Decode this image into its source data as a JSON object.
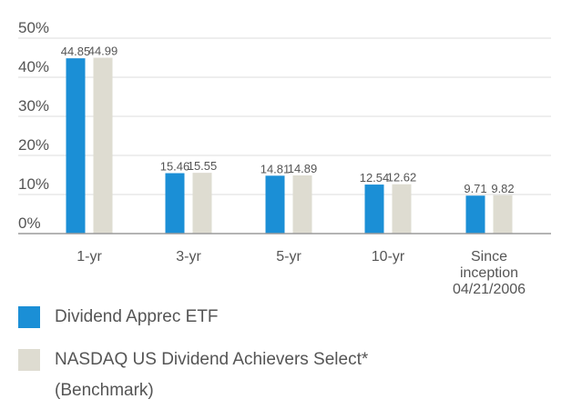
{
  "chart_data": {
    "type": "bar",
    "categories": [
      "1-yr",
      "3-yr",
      "5-yr",
      "10-yr",
      "Since inception 04/21/2006"
    ],
    "category_label_lines": [
      [
        "1-yr"
      ],
      [
        "3-yr"
      ],
      [
        "5-yr"
      ],
      [
        "10-yr"
      ],
      [
        "Since",
        "inception",
        "04/21/2006"
      ]
    ],
    "series": [
      {
        "name": "Dividend Apprec ETF",
        "values": [
          44.85,
          15.46,
          14.81,
          12.54,
          9.71
        ],
        "value_labels": [
          "44.85",
          "15.46",
          "14.81",
          "12.54",
          "9.71"
        ],
        "color": "#1b8fd6"
      },
      {
        "name": "NASDAQ US Dividend Achievers Select* (Benchmark)",
        "values": [
          44.99,
          15.55,
          14.89,
          12.62,
          9.82
        ],
        "value_labels": [
          "44.99",
          "15.55",
          "14.89",
          "12.62",
          "9.82"
        ],
        "color": "#dedcd1"
      }
    ],
    "ylim": [
      0,
      50
    ],
    "y_ticks": [
      0,
      10,
      20,
      30,
      40,
      50
    ],
    "y_tick_labels": [
      "0%",
      "10%",
      "20%",
      "30%",
      "40%",
      "50%"
    ],
    "grid": true,
    "legend_position": "bottom-left",
    "title": "",
    "xlabel": "",
    "ylabel": ""
  },
  "legend": {
    "items": [
      {
        "lines": [
          "Dividend Apprec ETF"
        ],
        "color": "#1b8fd6"
      },
      {
        "lines": [
          "NASDAQ US Dividend Achievers Select*",
          "(Benchmark)"
        ],
        "color": "#dedcd1"
      }
    ]
  },
  "colors": {
    "grid": "#dcdcdc",
    "axis": "#9a9a9a",
    "text": "#555555"
  }
}
